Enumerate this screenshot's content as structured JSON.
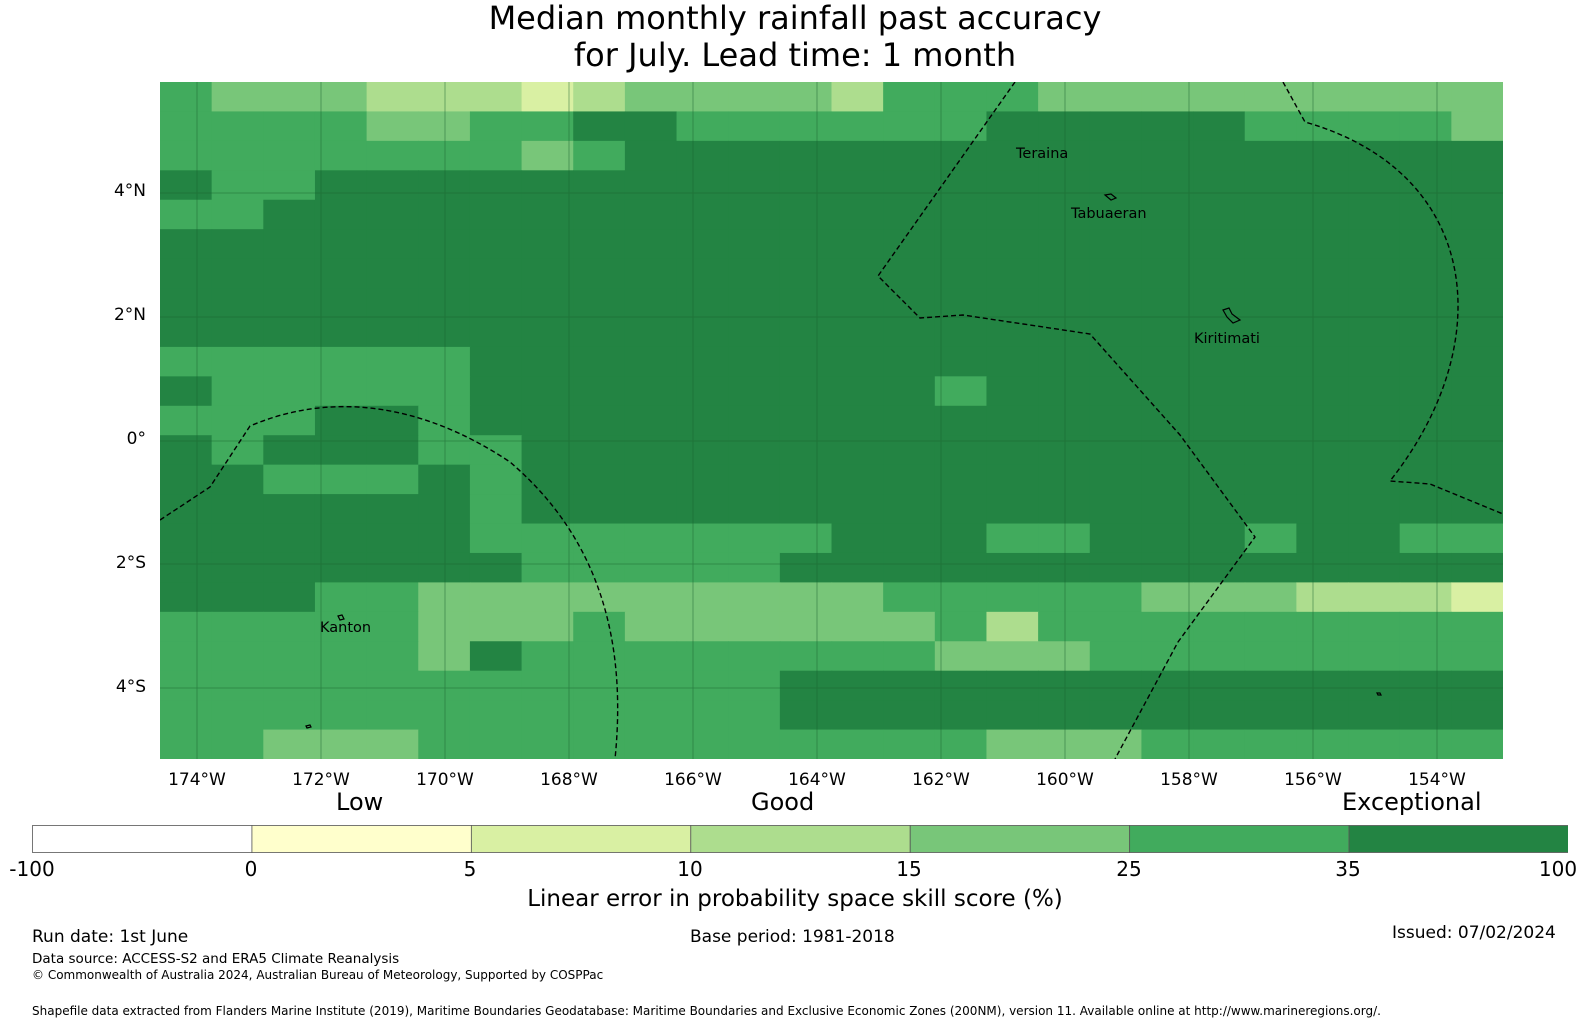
{
  "title": {
    "line1": "Median monthly rainfall past accuracy",
    "line2": "for July. Lead time: 1 month"
  },
  "map": {
    "lat_labels": [
      "4°N",
      "2°N",
      "0°",
      "2°S",
      "4°S"
    ],
    "lon_labels": [
      "174°W",
      "172°W",
      "170°W",
      "168°W",
      "166°W",
      "164°W",
      "162°W",
      "160°W",
      "158°W",
      "156°W",
      "154°W"
    ],
    "places": [
      "Teraina",
      "Tabuaeran",
      "Kiritimati",
      "Kanton"
    ],
    "grid": [
      "54443332344443555444444444",
      "55554455665555556666655554",
      "55555554566666666666666666",
      "65566666666666666666666666",
      "55666666666666666666666666",
      "66666666666666666666666666",
      "66666666666666666666666666",
      "66666666666666666666666666",
      "66666666666666666666666666",
      "55555566666666666666666666",
      "65555566666666656666666666",
      "55566566666666666666666666",
      "65666556666666666666666666",
      "66555656666666666666666666",
      "66666656666666666666666666",
      "66666655555556665566656655",
      "66666665555566666666666666",
      "66655444444444555554443332",
      "55555444544444453555555555",
      "55555465555555544455555555",
      "55555555555566666666666666",
      "55555555555566666666666666",
      "55444555555555554445555555"
    ]
  },
  "colorbar": {
    "headings": [
      "Low",
      "Good",
      "Exceptional"
    ],
    "ticks": [
      "-100",
      "0",
      "5",
      "10",
      "15",
      "25",
      "35",
      "100"
    ],
    "colors": [
      "#ffffff",
      "#ffffcc",
      "#d9f0a3",
      "#addd8e",
      "#78c679",
      "#41ab5d",
      "#238443"
    ],
    "title": "Linear error in probability space skill score (%)"
  },
  "footer": {
    "run_date": "Run date: 1st June",
    "base_period": "Base period: 1981-2018",
    "issued": "Issued: 07/02/2024",
    "data_source": "Data source: ACCESS-S2 and ERA5 Climate Reanalysis",
    "copyright": "© Commonwealth of Australia 2024, Australian Bureau of Meteorology, Supported by COSPPac",
    "shapefile": "Shapefile data extracted from Flanders Marine Institute (2019), Maritime Boundaries Geodatabase: Maritime Boundaries and Exclusive Economic Zones (200NM), version 11. Available online at http://www.marineregions.org/."
  }
}
